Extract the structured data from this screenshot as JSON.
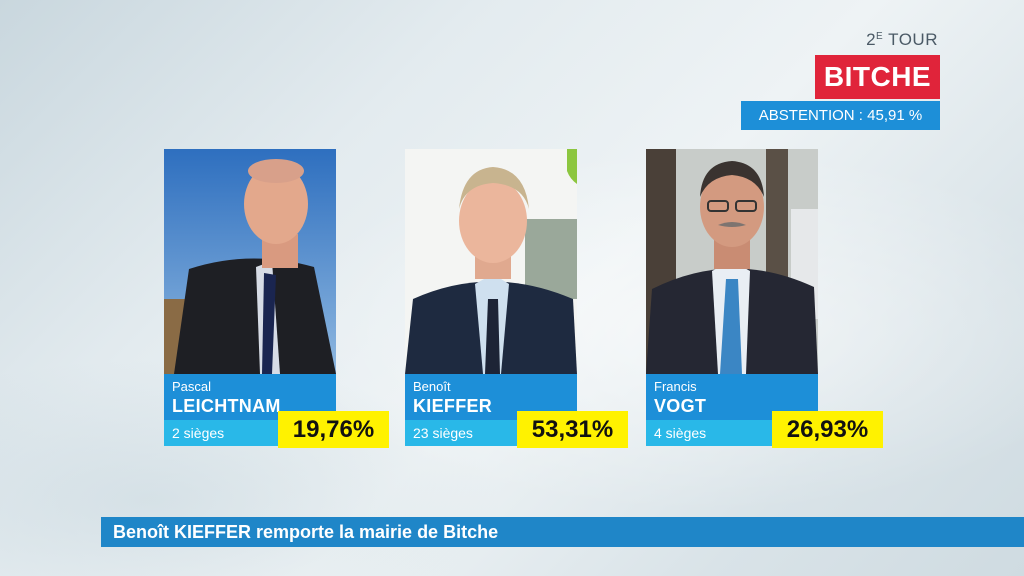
{
  "header": {
    "round_number": "2",
    "round_suffix": "E",
    "round_label": " TOUR",
    "city": "BITCHE",
    "abstention": "ABSTENTION : 45,91 %"
  },
  "candidates": [
    {
      "first_name": "Pascal",
      "last_name": "LEICHTNAM",
      "seats": "2 sièges",
      "percentage": "19,76%"
    },
    {
      "first_name": "Benoît",
      "last_name": "KIEFFER",
      "seats": "23 sièges",
      "percentage": "53,31%"
    },
    {
      "first_name": "Francis",
      "last_name": "VOGT",
      "seats": "4 sièges",
      "percentage": "26,93%"
    }
  ],
  "ticker": {
    "headline": "Benoît KIEFFER remporte la mairie de Bitche"
  },
  "colors": {
    "city_bg": "#e0243a",
    "info_blue": "#1d8fd8",
    "seats_blue": "#29b8e8",
    "percent_yellow": "#fff200",
    "ticker_blue": "#1f86c8"
  }
}
